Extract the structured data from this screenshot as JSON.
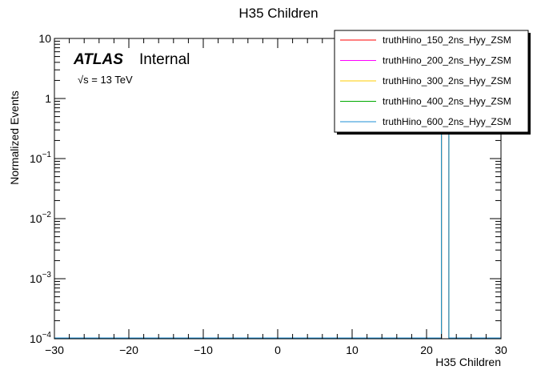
{
  "chart_data": {
    "type": "line",
    "title": "H35 Children",
    "xlabel": "H35 Children",
    "ylabel": "Normalized Events",
    "xlim": [
      -30,
      30
    ],
    "ylim": [
      0.0001,
      10
    ],
    "yscale": "log",
    "grid": false,
    "legend_position": "top-right",
    "x_ticks": [
      -30,
      -20,
      -10,
      0,
      10,
      20,
      30
    ],
    "x_tick_labels": [
      "−30",
      "−20",
      "−10",
      "0",
      "10",
      "20",
      "30"
    ],
    "y_ticks": [
      0.0001,
      0.001,
      0.01,
      0.1,
      1,
      10
    ],
    "y_tick_labels": [
      {
        "base": "10",
        "exp": "−4"
      },
      {
        "base": "10",
        "exp": "−3"
      },
      {
        "base": "10",
        "exp": "−2"
      },
      {
        "base": "10",
        "exp": "−1"
      },
      {
        "base": "1",
        "exp": ""
      },
      {
        "base": "10",
        "exp": ""
      }
    ],
    "annotations": {
      "atlas": "ATLAS",
      "internal": "Internal",
      "energy": "√s = 13 TeV"
    },
    "series": [
      {
        "name": "truthHino_150_2ns_Hyy_ZSM",
        "color": "#ff0000",
        "bin_low": 22,
        "bin_high": 23,
        "value": 1
      },
      {
        "name": "truthHino_200_2ns_Hyy_ZSM",
        "color": "#ff00ff",
        "bin_low": 22,
        "bin_high": 23,
        "value": 1
      },
      {
        "name": "truthHino_300_2ns_Hyy_ZSM",
        "color": "#ffcc00",
        "bin_low": 22,
        "bin_high": 23,
        "value": 1
      },
      {
        "name": "truthHino_400_2ns_Hyy_ZSM",
        "color": "#00aa00",
        "bin_low": 22,
        "bin_high": 23,
        "value": 1
      },
      {
        "name": "truthHino_600_2ns_Hyy_ZSM",
        "color": "#1f8fd6",
        "bin_low": 22,
        "bin_high": 23,
        "value": 1
      }
    ]
  }
}
